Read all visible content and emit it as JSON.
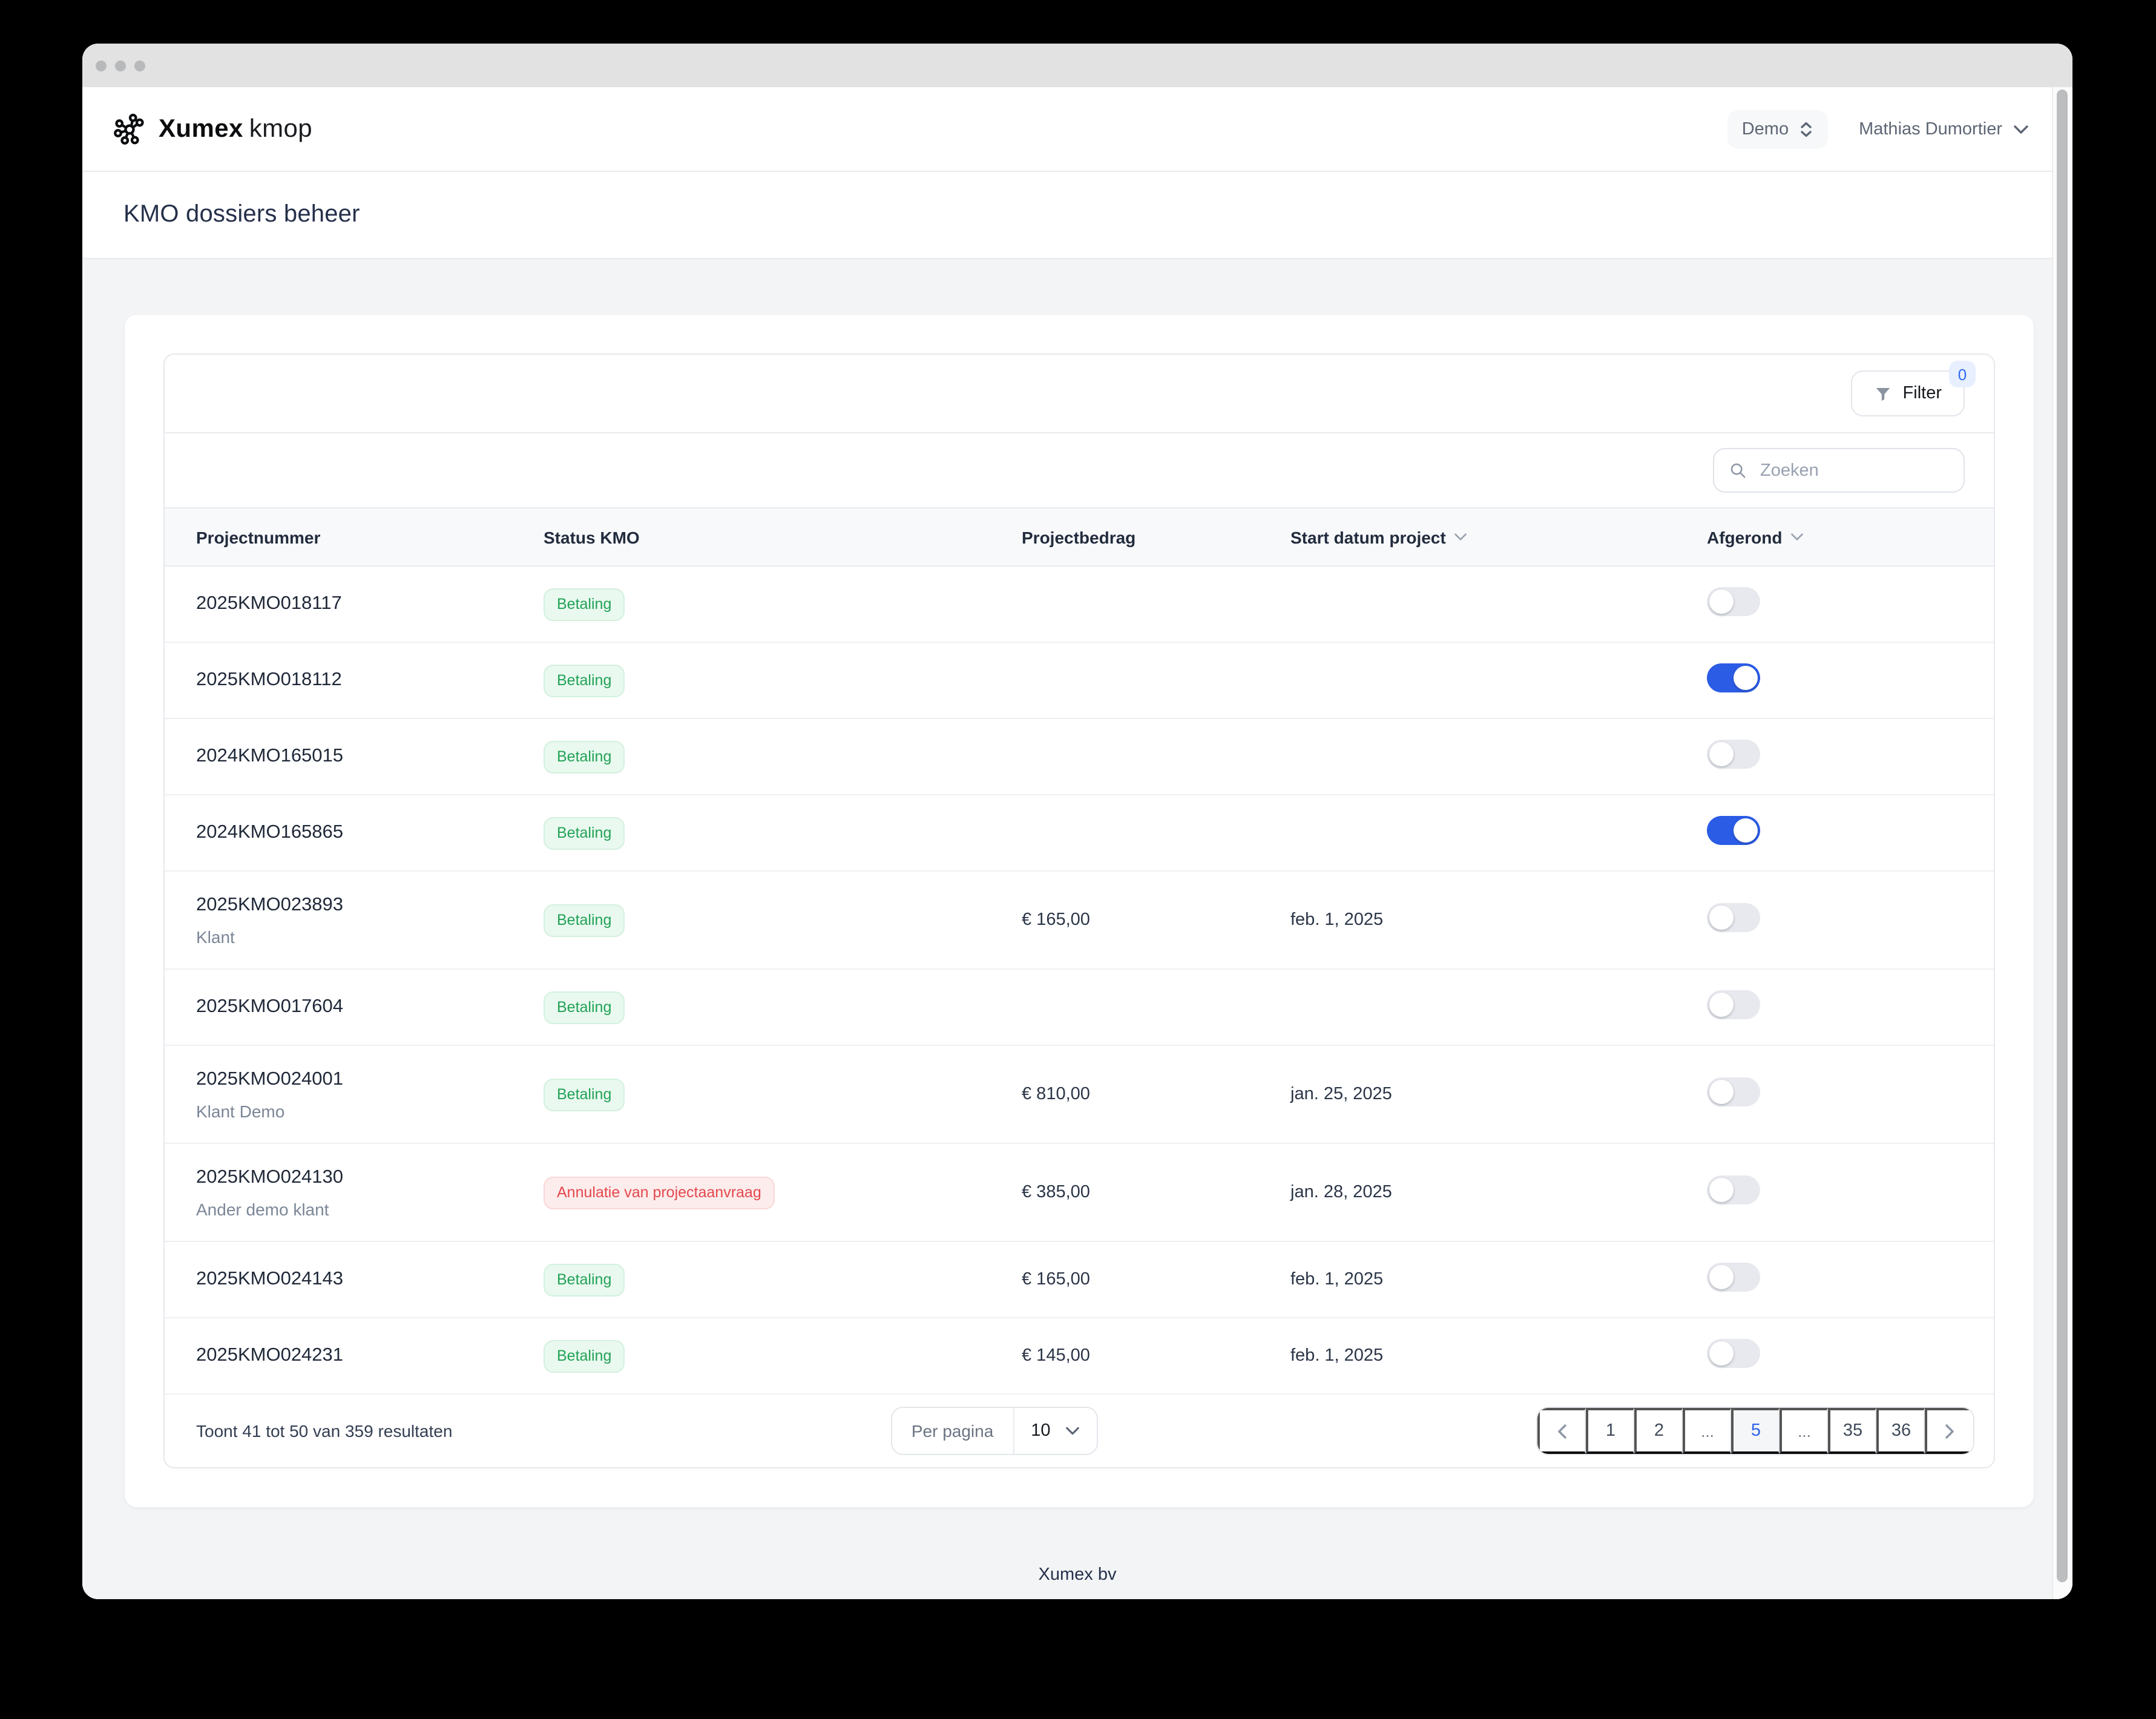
{
  "header": {
    "brand_bold": "Xumex",
    "brand_light": "kmop",
    "env_label": "Demo",
    "user_name": "Mathias Dumortier"
  },
  "page": {
    "title": "KMO dossiers beheer",
    "footer_text": "Xumex bv"
  },
  "toolbar": {
    "filter_label": "Filter",
    "filter_count": "0",
    "search_placeholder": "Zoeken"
  },
  "table": {
    "columns": [
      {
        "label": "Projectnummer",
        "sortable": false
      },
      {
        "label": "Status KMO",
        "sortable": false
      },
      {
        "label": "Projectbedrag",
        "sortable": false
      },
      {
        "label": "Start datum project",
        "sortable": true
      },
      {
        "label": "Afgerond",
        "sortable": true
      }
    ],
    "rows": [
      {
        "number": "2025KMO018117",
        "client": "",
        "status": "Betaling",
        "status_type": "green",
        "amount": "",
        "start_date": "",
        "done": false
      },
      {
        "number": "2025KMO018112",
        "client": "",
        "status": "Betaling",
        "status_type": "green",
        "amount": "",
        "start_date": "",
        "done": true
      },
      {
        "number": "2024KMO165015",
        "client": "",
        "status": "Betaling",
        "status_type": "green",
        "amount": "",
        "start_date": "",
        "done": false
      },
      {
        "number": "2024KMO165865",
        "client": "",
        "status": "Betaling",
        "status_type": "green",
        "amount": "",
        "start_date": "",
        "done": true
      },
      {
        "number": "2025KMO023893",
        "client": "Klant",
        "status": "Betaling",
        "status_type": "green",
        "amount": "€ 165,00",
        "start_date": "feb. 1, 2025",
        "done": false
      },
      {
        "number": "2025KMO017604",
        "client": "",
        "status": "Betaling",
        "status_type": "green",
        "amount": "",
        "start_date": "",
        "done": false
      },
      {
        "number": "2025KMO024001",
        "client": "Klant Demo",
        "status": "Betaling",
        "status_type": "green",
        "amount": "€ 810,00",
        "start_date": "jan. 25, 2025",
        "done": false
      },
      {
        "number": "2025KMO024130",
        "client": "Ander demo klant",
        "status": "Annulatie van projectaanvraag",
        "status_type": "red",
        "amount": "€ 385,00",
        "start_date": "jan. 28, 2025",
        "done": false
      },
      {
        "number": "2025KMO024143",
        "client": "",
        "status": "Betaling",
        "status_type": "green",
        "amount": "€ 165,00",
        "start_date": "feb. 1, 2025",
        "done": false
      },
      {
        "number": "2025KMO024231",
        "client": "",
        "status": "Betaling",
        "status_type": "green",
        "amount": "€ 145,00",
        "start_date": "feb. 1, 2025",
        "done": false
      }
    ]
  },
  "pagination": {
    "summary": "Toont 41 tot 50 van 359 resultaten",
    "per_page_label": "Per pagina",
    "per_page_value": "10",
    "pages": [
      {
        "label": "1",
        "type": "page",
        "active": false
      },
      {
        "label": "2",
        "type": "page",
        "active": false
      },
      {
        "label": "...",
        "type": "ellipsis",
        "active": false
      },
      {
        "label": "5",
        "type": "page",
        "active": true
      },
      {
        "label": "...",
        "type": "ellipsis",
        "active": false
      },
      {
        "label": "35",
        "type": "page",
        "active": false
      },
      {
        "label": "36",
        "type": "page",
        "active": false
      }
    ]
  },
  "colors": {
    "accent_blue": "#2b5ce6",
    "status_green": "#23a257",
    "status_red": "#e5484d",
    "toggle_off": "#e7e9ee",
    "page_background": "#f3f4f6"
  }
}
